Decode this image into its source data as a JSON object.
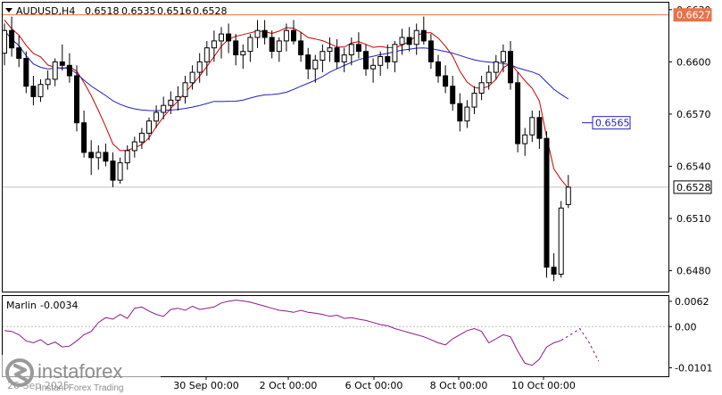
{
  "header": {
    "symbol": "AUDUSD,H4",
    "open": "0.6518",
    "high": "0.6535",
    "low": "0.6516",
    "close": "0.6528"
  },
  "indicator": {
    "name": "Marlin",
    "value": "-0.0034"
  },
  "watermark": {
    "brand": "instaforex",
    "tagline": "Instant Forex Trading"
  },
  "colors": {
    "background": "#ffffff",
    "frame": "#000000",
    "candle_bull": "#ffffff",
    "candle_bear": "#000000",
    "envelope": "#cc0000",
    "moving_average": "#1f1fbf",
    "oscillator": "#8b1a8b",
    "level_line": "#e8734a",
    "current_price": "#000000",
    "grid": "#c0c0c0"
  },
  "chart_data": [
    {
      "type": "candlestick",
      "title": "AUDUSD,H4",
      "ylim": [
        0.6468,
        0.6634
      ],
      "y_ticks": [
        "0.6630",
        "0.6600",
        "0.6570",
        "0.6540",
        "0.6510",
        "0.6480"
      ],
      "x_ticks": [
        "30 Sep 00:00",
        "2 Oct 00:00",
        "6 Oct 00:00",
        "8 Oct 00:00",
        "10 Oct 00:00"
      ],
      "x_ticks_partial": [
        "26 Sep 2025"
      ],
      "price_labels": [
        {
          "text": "0.6627",
          "value": 0.6627,
          "kind": "level"
        },
        {
          "text": "0.6565",
          "value": 0.6565,
          "kind": "ma"
        },
        {
          "text": "0.6528",
          "value": 0.6528,
          "kind": "current"
        }
      ],
      "level_line": 0.6627,
      "current_price": 0.6528,
      "candles": [
        [
          0.6605,
          0.6622,
          0.6598,
          0.6618
        ],
        [
          0.6618,
          0.6626,
          0.6603,
          0.6608
        ],
        [
          0.6608,
          0.6615,
          0.6597,
          0.6602
        ],
        [
          0.6602,
          0.6606,
          0.6582,
          0.6586
        ],
        [
          0.6586,
          0.6592,
          0.6575,
          0.658
        ],
        [
          0.658,
          0.659,
          0.6577,
          0.6587
        ],
        [
          0.6587,
          0.6595,
          0.6584,
          0.659
        ],
        [
          0.659,
          0.6602,
          0.6586,
          0.66
        ],
        [
          0.66,
          0.661,
          0.6595,
          0.6598
        ],
        [
          0.6598,
          0.6605,
          0.6588,
          0.6592
        ],
        [
          0.6592,
          0.6598,
          0.656,
          0.6565
        ],
        [
          0.6565,
          0.6572,
          0.6545,
          0.6548
        ],
        [
          0.6548,
          0.6555,
          0.6535,
          0.6545
        ],
        [
          0.6545,
          0.6552,
          0.6538,
          0.6548
        ],
        [
          0.6548,
          0.6553,
          0.654,
          0.6543
        ],
        [
          0.6543,
          0.6548,
          0.6528,
          0.6532
        ],
        [
          0.6532,
          0.6545,
          0.653,
          0.6542
        ],
        [
          0.6542,
          0.6552,
          0.6538,
          0.6549
        ],
        [
          0.6549,
          0.6557,
          0.6545,
          0.6554
        ],
        [
          0.6554,
          0.6562,
          0.655,
          0.6559
        ],
        [
          0.6559,
          0.6568,
          0.6555,
          0.6566
        ],
        [
          0.6566,
          0.6575,
          0.6562,
          0.6571
        ],
        [
          0.6571,
          0.658,
          0.6567,
          0.6575
        ],
        [
          0.6575,
          0.6583,
          0.657,
          0.6578
        ],
        [
          0.6578,
          0.6586,
          0.6572,
          0.658
        ],
        [
          0.658,
          0.6592,
          0.6576,
          0.6588
        ],
        [
          0.6588,
          0.6598,
          0.6584,
          0.6594
        ],
        [
          0.6594,
          0.6605,
          0.6588,
          0.66
        ],
        [
          0.66,
          0.6612,
          0.6592,
          0.6608
        ],
        [
          0.6608,
          0.6618,
          0.66,
          0.6612
        ],
        [
          0.6612,
          0.662,
          0.6602,
          0.6616
        ],
        [
          0.6616,
          0.6622,
          0.6605,
          0.6612
        ],
        [
          0.6612,
          0.6616,
          0.6598,
          0.6604
        ],
        [
          0.6604,
          0.661,
          0.6596,
          0.6606
        ],
        [
          0.6606,
          0.6616,
          0.66,
          0.6614
        ],
        [
          0.6614,
          0.6624,
          0.6608,
          0.6618
        ],
        [
          0.6618,
          0.6624,
          0.661,
          0.6614
        ],
        [
          0.6614,
          0.6618,
          0.6602,
          0.6606
        ],
        [
          0.6606,
          0.6614,
          0.66,
          0.6612
        ],
        [
          0.6612,
          0.6622,
          0.6606,
          0.6618
        ],
        [
          0.6618,
          0.6624,
          0.661,
          0.6612
        ],
        [
          0.6612,
          0.6617,
          0.66,
          0.6604
        ],
        [
          0.6604,
          0.6608,
          0.659,
          0.6596
        ],
        [
          0.6596,
          0.6604,
          0.6588,
          0.6601
        ],
        [
          0.6601,
          0.661,
          0.6594,
          0.6606
        ],
        [
          0.6606,
          0.6614,
          0.66,
          0.6608
        ],
        [
          0.6608,
          0.6613,
          0.6596,
          0.66
        ],
        [
          0.66,
          0.6608,
          0.6594,
          0.6604
        ],
        [
          0.6604,
          0.6614,
          0.6598,
          0.661
        ],
        [
          0.661,
          0.6617,
          0.6602,
          0.6606
        ],
        [
          0.6606,
          0.661,
          0.6592,
          0.6596
        ],
        [
          0.6596,
          0.6602,
          0.6588,
          0.6598
        ],
        [
          0.6598,
          0.6606,
          0.6592,
          0.6603
        ],
        [
          0.6603,
          0.661,
          0.6596,
          0.66
        ],
        [
          0.66,
          0.6612,
          0.6594,
          0.661
        ],
        [
          0.661,
          0.6619,
          0.6604,
          0.6614
        ],
        [
          0.6614,
          0.662,
          0.6606,
          0.661
        ],
        [
          0.661,
          0.6622,
          0.6604,
          0.6618
        ],
        [
          0.6618,
          0.6626,
          0.661,
          0.6612
        ],
        [
          0.6612,
          0.6616,
          0.6596,
          0.66
        ],
        [
          0.66,
          0.6604,
          0.6588,
          0.6592
        ],
        [
          0.6592,
          0.6598,
          0.6582,
          0.6586
        ],
        [
          0.6586,
          0.6592,
          0.6572,
          0.6576
        ],
        [
          0.6576,
          0.6582,
          0.656,
          0.6566
        ],
        [
          0.6566,
          0.6578,
          0.6562,
          0.6574
        ],
        [
          0.6574,
          0.6586,
          0.657,
          0.6582
        ],
        [
          0.6582,
          0.6592,
          0.6578,
          0.6588
        ],
        [
          0.6588,
          0.6598,
          0.6584,
          0.6594
        ],
        [
          0.6594,
          0.6604,
          0.659,
          0.66
        ],
        [
          0.66,
          0.661,
          0.6594,
          0.6606
        ],
        [
          0.6606,
          0.6612,
          0.6584,
          0.6588
        ],
        [
          0.6588,
          0.6594,
          0.6548,
          0.6553
        ],
        [
          0.6553,
          0.6562,
          0.6546,
          0.6558
        ],
        [
          0.6558,
          0.6572,
          0.6554,
          0.6568
        ],
        [
          0.6568,
          0.6572,
          0.655,
          0.6556
        ],
        [
          0.6556,
          0.656,
          0.6476,
          0.6482
        ],
        [
          0.6482,
          0.649,
          0.6474,
          0.6478
        ],
        [
          0.6478,
          0.652,
          0.6476,
          0.6516
        ],
        [
          0.6518,
          0.6535,
          0.6516,
          0.6528
        ]
      ]
    },
    {
      "type": "line",
      "title": "Marlin -0.0034",
      "ylim": [
        -0.0122,
        0.0075
      ],
      "y_ticks": [
        "0.0062",
        "0.00",
        "-0.0101"
      ],
      "series": [
        {
          "name": "Marlin",
          "values": [
            -0.001,
            -0.0012,
            -0.002,
            -0.0035,
            -0.004,
            -0.0032,
            -0.0045,
            -0.0038,
            -0.005,
            -0.0048,
            -0.0035,
            -0.002,
            -0.0012,
            0.001,
            0.0022,
            0.0018,
            0.003,
            0.002,
            0.0045,
            0.0048,
            0.0038,
            0.003,
            0.0025,
            0.0042,
            0.0045,
            0.004,
            0.005,
            0.0042,
            0.0045,
            0.0048,
            0.0058,
            0.0062,
            0.0065,
            0.0063,
            0.006,
            0.0055,
            0.005,
            0.0045,
            0.004,
            0.0038,
            0.0035,
            0.004,
            0.0035,
            0.0033,
            0.003,
            0.0025,
            0.0028,
            0.002,
            0.0022,
            0.0018,
            0.0015,
            0.001,
            0.0005,
            0.0002,
            -0.0005,
            -0.001,
            -0.0015,
            -0.002,
            -0.0025,
            -0.0032,
            -0.004,
            -0.0045,
            -0.003,
            -0.002,
            -0.001,
            -0.0005,
            -0.0012,
            -0.004,
            -0.003,
            -0.002,
            -0.0025,
            -0.006,
            -0.009,
            -0.0095,
            -0.008,
            -0.005,
            -0.004,
            -0.0034
          ],
          "forecast": [
            -0.0034,
            -0.002,
            -0.0005,
            -0.004,
            -0.0085
          ]
        }
      ]
    }
  ]
}
